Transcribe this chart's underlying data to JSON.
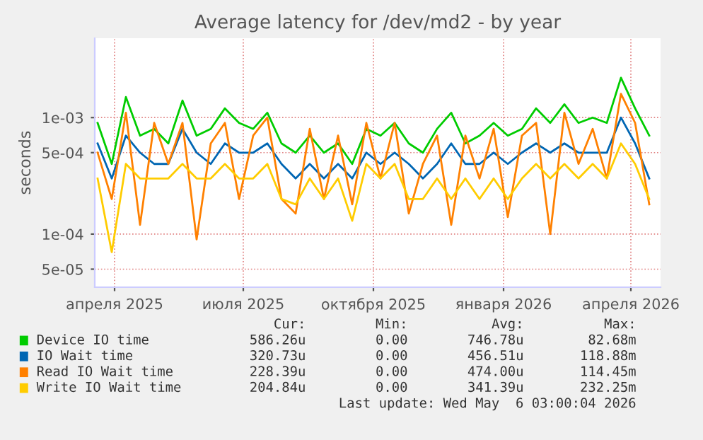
{
  "chart_data": {
    "type": "line",
    "title": "Average latency for /dev/md2 - by year",
    "ylabel": "seconds",
    "log": "y",
    "x": [
      "2025-03-20",
      "2025-03-30",
      "2025-04-09",
      "2025-04-19",
      "2025-04-29",
      "2025-05-09",
      "2025-05-19",
      "2025-05-29",
      "2025-06-08",
      "2025-06-18",
      "2025-06-28",
      "2025-07-08",
      "2025-07-18",
      "2025-07-28",
      "2025-08-07",
      "2025-08-17",
      "2025-08-27",
      "2025-09-06",
      "2025-09-16",
      "2025-09-26",
      "2025-10-06",
      "2025-10-16",
      "2025-10-26",
      "2025-11-05",
      "2025-11-15",
      "2025-11-25",
      "2025-12-05",
      "2025-12-15",
      "2025-12-25",
      "2026-01-04",
      "2026-01-14",
      "2026-01-24",
      "2026-02-03",
      "2026-02-13",
      "2026-02-23",
      "2026-03-05",
      "2026-03-15",
      "2026-03-25",
      "2026-04-04",
      "2026-04-14"
    ],
    "series": [
      {
        "name": "Device IO time",
        "color": "#00cc00",
        "values": [
          0.0009,
          0.0004,
          0.0015,
          0.0007,
          0.0008,
          0.0006,
          0.0014,
          0.0007,
          0.0008,
          0.0012,
          0.0009,
          0.0008,
          0.0011,
          0.0006,
          0.0005,
          0.0007,
          0.0005,
          0.0006,
          0.0004,
          0.0008,
          0.0007,
          0.0009,
          0.0006,
          0.0005,
          0.0008,
          0.0011,
          0.0006,
          0.0007,
          0.0009,
          0.0007,
          0.0008,
          0.0012,
          0.0009,
          0.0013,
          0.0009,
          0.001,
          0.0009,
          0.0022,
          0.0012,
          0.0007
        ]
      },
      {
        "name": "IO Wait time",
        "color": "#0066b3",
        "values": [
          0.0006,
          0.0003,
          0.0007,
          0.0005,
          0.0004,
          0.0004,
          0.0008,
          0.0005,
          0.0004,
          0.0006,
          0.0005,
          0.0005,
          0.0006,
          0.0004,
          0.0003,
          0.0004,
          0.0003,
          0.0004,
          0.0003,
          0.0005,
          0.0004,
          0.0005,
          0.0004,
          0.0003,
          0.0004,
          0.0006,
          0.0004,
          0.0004,
          0.0005,
          0.0004,
          0.0005,
          0.0006,
          0.0005,
          0.0006,
          0.0005,
          0.0005,
          0.0005,
          0.001,
          0.0006,
          0.0003
        ]
      },
      {
        "name": "Read IO Wait time",
        "color": "#ff8000",
        "values": [
          0.0005,
          0.0002,
          0.0011,
          0.00012,
          0.0009,
          0.0004,
          0.0009,
          9e-05,
          0.0006,
          0.0009,
          0.0002,
          0.0007,
          0.001,
          0.0002,
          0.00015,
          0.0008,
          0.0002,
          0.0007,
          0.00018,
          0.0009,
          0.0003,
          0.0009,
          0.00015,
          0.0004,
          0.0007,
          0.00012,
          0.0007,
          0.0003,
          0.0008,
          0.00014,
          0.0007,
          0.0009,
          0.0001,
          0.0011,
          0.0004,
          0.0008,
          0.0003,
          0.0016,
          0.0009,
          0.00018
        ]
      },
      {
        "name": "Write IO Wait time",
        "color": "#ffcc00",
        "values": [
          0.0003,
          7e-05,
          0.0004,
          0.0003,
          0.0003,
          0.0003,
          0.0004,
          0.0003,
          0.0003,
          0.0004,
          0.0003,
          0.0003,
          0.0004,
          0.0002,
          0.00018,
          0.0003,
          0.0002,
          0.0003,
          0.00013,
          0.0004,
          0.0003,
          0.0004,
          0.0002,
          0.0002,
          0.0003,
          0.0002,
          0.0003,
          0.0002,
          0.0003,
          0.0002,
          0.0003,
          0.0004,
          0.0003,
          0.0004,
          0.0003,
          0.0004,
          0.0003,
          0.0006,
          0.0004,
          0.0002
        ]
      }
    ],
    "xlim": [
      "2025-03-18",
      "2026-04-22"
    ],
    "xticks": [
      {
        "value": "2025-04-01",
        "label": "апреля 2025"
      },
      {
        "value": "2025-07-01",
        "label": "июля 2025"
      },
      {
        "value": "2025-10-01",
        "label": "октября 2025"
      },
      {
        "value": "2026-01-01",
        "label": "января 2026"
      },
      {
        "value": "2026-04-01",
        "label": "апреля 2026"
      }
    ],
    "ylim": [
      3.5e-05,
      0.0048
    ],
    "yticks": [
      {
        "value": 5e-05,
        "label": "5e-05"
      },
      {
        "value": 0.0001,
        "label": "1e-04"
      },
      {
        "value": 0.0005,
        "label": "5e-04"
      },
      {
        "value": 0.001,
        "label": "1e-03"
      }
    ],
    "grid": true,
    "legend": "bottom",
    "annotations": [
      "Cur:",
      "Min:",
      "Avg:",
      "Max:",
      "586.26u",
      "0.00",
      "746.78u",
      "82.68m",
      "320.73u",
      "0.00",
      "456.51u",
      "118.88m",
      "228.39u",
      "0.00",
      "474.00u",
      "114.45m",
      "204.84u",
      "0.00",
      "341.39u",
      "232.25m",
      "Last update: Wed May  6 03:00:04 2026"
    ]
  }
}
